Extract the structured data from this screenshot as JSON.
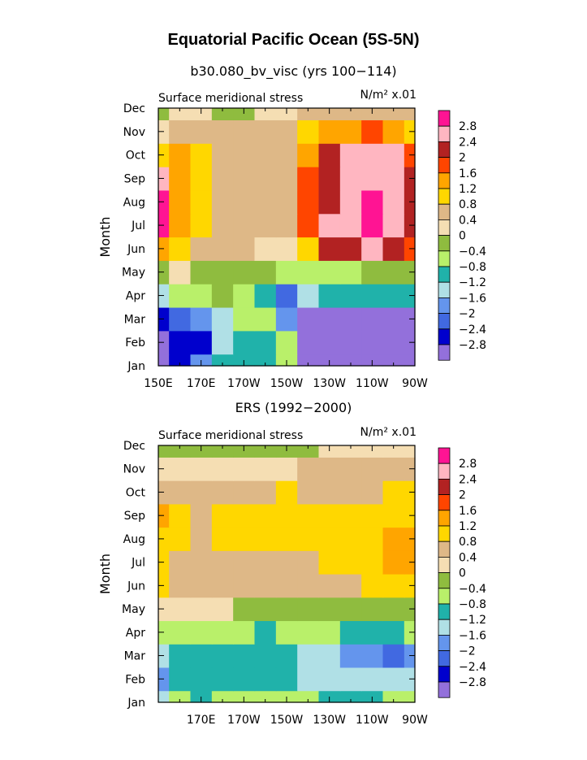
{
  "figure": {
    "title": "Equatorial Pacific Ocean (5S-5N)",
    "panels": [
      {
        "heading": "b30.080_bv_visc (yrs 100−114)",
        "left_label": "Surface meridional stress",
        "right_label": "N/m² x.01",
        "ylabel": "Month",
        "x_ticks": [
          "150E",
          "170E",
          "170W",
          "150W",
          "130W",
          "110W",
          "90W"
        ],
        "y_ticks": [
          "Jan",
          "Feb",
          "Mar",
          "Apr",
          "May",
          "Jun",
          "Jul",
          "Aug",
          "Sep",
          "Oct",
          "Nov",
          "Dec"
        ]
      },
      {
        "heading": "ERS (1992−2000)",
        "left_label": "Surface meridional stress",
        "right_label": "N/m² x.01",
        "ylabel": "Month",
        "x_ticks": [
          "",
          "170E",
          "170W",
          "150W",
          "130W",
          "110W",
          "90W"
        ],
        "y_ticks": [
          "Jan",
          "Feb",
          "Mar",
          "Apr",
          "May",
          "Jun",
          "Jul",
          "Aug",
          "Sep",
          "Oct",
          "Nov",
          "Dec"
        ]
      }
    ],
    "colorbar": {
      "labels": [
        "2.8",
        "2.4",
        "2",
        "1.6",
        "1.2",
        "0.8",
        "0.4",
        "0",
        "−0.4",
        "−0.8",
        "−1.2",
        "−1.6",
        "−2",
        "−2.4",
        "−2.8"
      ],
      "colors": [
        "#ff1493",
        "#ffb6c1",
        "#b22222",
        "#ff4500",
        "#ffa500",
        "#ffd700",
        "#deb887",
        "#f5deb3",
        "#8fbc3f",
        "#b9f06a",
        "#20b2aa",
        "#b0e0e6",
        "#6495ed",
        "#4169e1",
        "#0000cd",
        "#9370db"
      ]
    }
  },
  "chart_data": [
    {
      "type": "heatmap",
      "title": "b30.080_bv_visc (yrs 100−114)",
      "variable": "Surface meridional stress",
      "units": "N/m² x.01",
      "xlabel": "",
      "ylabel": "Month",
      "x_ticks": [
        "150E",
        "170E",
        "170W",
        "150W",
        "130W",
        "110W",
        "90W"
      ],
      "y_ticks": [
        "Jan",
        "Feb",
        "Mar",
        "Apr",
        "May",
        "Jun",
        "Jul",
        "Aug",
        "Sep",
        "Oct",
        "Nov",
        "Dec"
      ],
      "levels": [
        -2.8,
        -2.4,
        -2,
        -1.6,
        -1.2,
        -0.8,
        -0.4,
        0,
        0.4,
        0.8,
        1.2,
        1.6,
        2,
        2.4,
        2.8
      ],
      "cols": [
        "150E",
        "160E",
        "170E",
        "180",
        "170W",
        "160W",
        "150W",
        "140W",
        "130W",
        "120W",
        "110W",
        "100W",
        "90W"
      ],
      "rows": [
        "Jan",
        "Feb",
        "Mar",
        "Apr",
        "May",
        "Jun",
        "Jul",
        "Aug",
        "Sep",
        "Oct",
        "Nov",
        "Dec"
      ],
      "values": [
        [
          -2.9,
          -2.5,
          -1.9,
          -0.9,
          -1.0,
          -0.9,
          -0.5,
          -3.0,
          -3.0,
          -3.0,
          -3.0,
          -3.0,
          -2.9
        ],
        [
          -2.9,
          -2.8,
          -2.5,
          -1.3,
          -1.0,
          -0.9,
          -0.7,
          -3.0,
          -3.0,
          -3.0,
          -3.0,
          -3.0,
          -2.9
        ],
        [
          -2.7,
          -2.3,
          -1.7,
          -1.3,
          -0.7,
          -0.7,
          -2.0,
          -3.0,
          -3.0,
          -3.0,
          -3.0,
          -3.0,
          -2.9
        ],
        [
          -1.5,
          -0.8,
          -0.7,
          -0.4,
          -0.6,
          -1.1,
          -2.3,
          -1.5,
          -1.2,
          -1.2,
          -1.2,
          -1.1,
          -0.9
        ],
        [
          -0.2,
          0.2,
          -0.1,
          -0.1,
          -0.2,
          -0.4,
          -0.6,
          -0.6,
          -0.7,
          -0.7,
          -0.4,
          -0.2,
          -0.2
        ],
        [
          1.4,
          1.0,
          0.5,
          0.4,
          0.5,
          0.3,
          0.2,
          0.9,
          2.1,
          2.2,
          2.5,
          2.1,
          1.8
        ],
        [
          2.9,
          1.4,
          0.9,
          0.5,
          0.5,
          0.5,
          0.5,
          1.6,
          2.4,
          2.6,
          3.0,
          2.6,
          2.2
        ],
        [
          2.9,
          1.4,
          0.9,
          0.5,
          0.5,
          0.5,
          0.6,
          1.6,
          2.3,
          2.6,
          2.8,
          2.6,
          2.2
        ],
        [
          2.5,
          1.4,
          0.9,
          0.5,
          0.5,
          0.5,
          0.7,
          1.6,
          2.3,
          2.6,
          2.6,
          2.6,
          2.1
        ],
        [
          1.0,
          1.3,
          0.8,
          0.5,
          0.5,
          0.4,
          0.6,
          1.5,
          2.1,
          2.5,
          2.6,
          2.5,
          1.8
        ],
        [
          0.2,
          0.7,
          0.5,
          0.5,
          0.4,
          0.4,
          0.5,
          1.0,
          1.3,
          1.4,
          1.6,
          1.5,
          1.0
        ],
        [
          -0.3,
          0.1,
          0.0,
          -0.1,
          -0.2,
          0.1,
          0.3,
          0.6,
          0.6,
          0.7,
          0.7,
          0.6,
          0.5
        ]
      ]
    },
    {
      "type": "heatmap",
      "title": "ERS (1992−2000)",
      "variable": "Surface meridional stress",
      "units": "N/m² x.01",
      "xlabel": "",
      "ylabel": "Month",
      "x_ticks": [
        "",
        "170E",
        "170W",
        "150W",
        "130W",
        "110W",
        "90W"
      ],
      "y_ticks": [
        "Jan",
        "Feb",
        "Mar",
        "Apr",
        "May",
        "Jun",
        "Jul",
        "Aug",
        "Sep",
        "Oct",
        "Nov",
        "Dec"
      ],
      "levels": [
        -2.8,
        -2.4,
        -2,
        -1.6,
        -1.2,
        -0.8,
        -0.4,
        0,
        0.4,
        0.8,
        1.2,
        1.6,
        2,
        2.4,
        2.8
      ],
      "cols": [
        "150E",
        "160E",
        "170E",
        "180",
        "170W",
        "160W",
        "150W",
        "140W",
        "130W",
        "120W",
        "110W",
        "100W",
        "90W"
      ],
      "rows": [
        "Jan",
        "Feb",
        "Mar",
        "Apr",
        "May",
        "Jun",
        "Jul",
        "Aug",
        "Sep",
        "Oct",
        "Nov",
        "Dec"
      ],
      "values": [
        [
          -1.3,
          -0.7,
          -0.9,
          -0.7,
          -0.6,
          -0.7,
          -0.7,
          -0.6,
          -0.9,
          -1.0,
          -0.9,
          -0.8,
          -0.7
        ],
        [
          -1.7,
          -1.1,
          -0.9,
          -0.9,
          -0.9,
          -0.9,
          -0.9,
          -1.3,
          -1.3,
          -1.4,
          -1.5,
          -1.5,
          -1.3
        ],
        [
          -1.3,
          -0.9,
          -0.9,
          -0.9,
          -0.9,
          -1.0,
          -1.0,
          -1.3,
          -1.3,
          -1.7,
          -1.8,
          -2.3,
          -2.0
        ],
        [
          -0.5,
          -0.5,
          -0.6,
          -0.6,
          -0.7,
          -0.9,
          -0.8,
          -0.8,
          -0.8,
          -0.9,
          -0.9,
          -1.0,
          -0.8
        ],
        [
          0.2,
          0.2,
          0.1,
          0.0,
          -0.1,
          -0.2,
          -0.3,
          -0.3,
          -0.3,
          -0.3,
          -0.3,
          -0.3,
          -0.2
        ],
        [
          1.0,
          0.6,
          0.5,
          0.5,
          0.5,
          0.5,
          0.5,
          0.5,
          0.6,
          0.7,
          0.8,
          0.9,
          1.0
        ],
        [
          1.0,
          0.7,
          0.5,
          0.6,
          0.6,
          0.7,
          0.7,
          0.7,
          0.8,
          0.9,
          1.1,
          1.3,
          1.3
        ],
        [
          1.0,
          0.9,
          0.6,
          0.8,
          0.9,
          0.9,
          0.9,
          0.9,
          0.9,
          0.9,
          1.1,
          1.2,
          1.2
        ],
        [
          1.3,
          0.9,
          0.7,
          0.8,
          0.9,
          1.0,
          1.0,
          0.9,
          0.9,
          0.9,
          1.0,
          1.1,
          1.1
        ],
        [
          0.6,
          0.5,
          0.5,
          0.6,
          0.7,
          0.7,
          0.8,
          0.7,
          0.6,
          0.6,
          0.7,
          0.8,
          0.9
        ],
        [
          0.2,
          0.2,
          0.3,
          0.3,
          0.3,
          0.3,
          0.3,
          0.4,
          0.5,
          0.5,
          0.5,
          0.5,
          0.5
        ],
        [
          -0.2,
          -0.1,
          -0.1,
          -0.1,
          -0.1,
          -0.1,
          -0.1,
          -0.1,
          0.1,
          0.2,
          0.2,
          0.2,
          0.2
        ]
      ]
    }
  ]
}
